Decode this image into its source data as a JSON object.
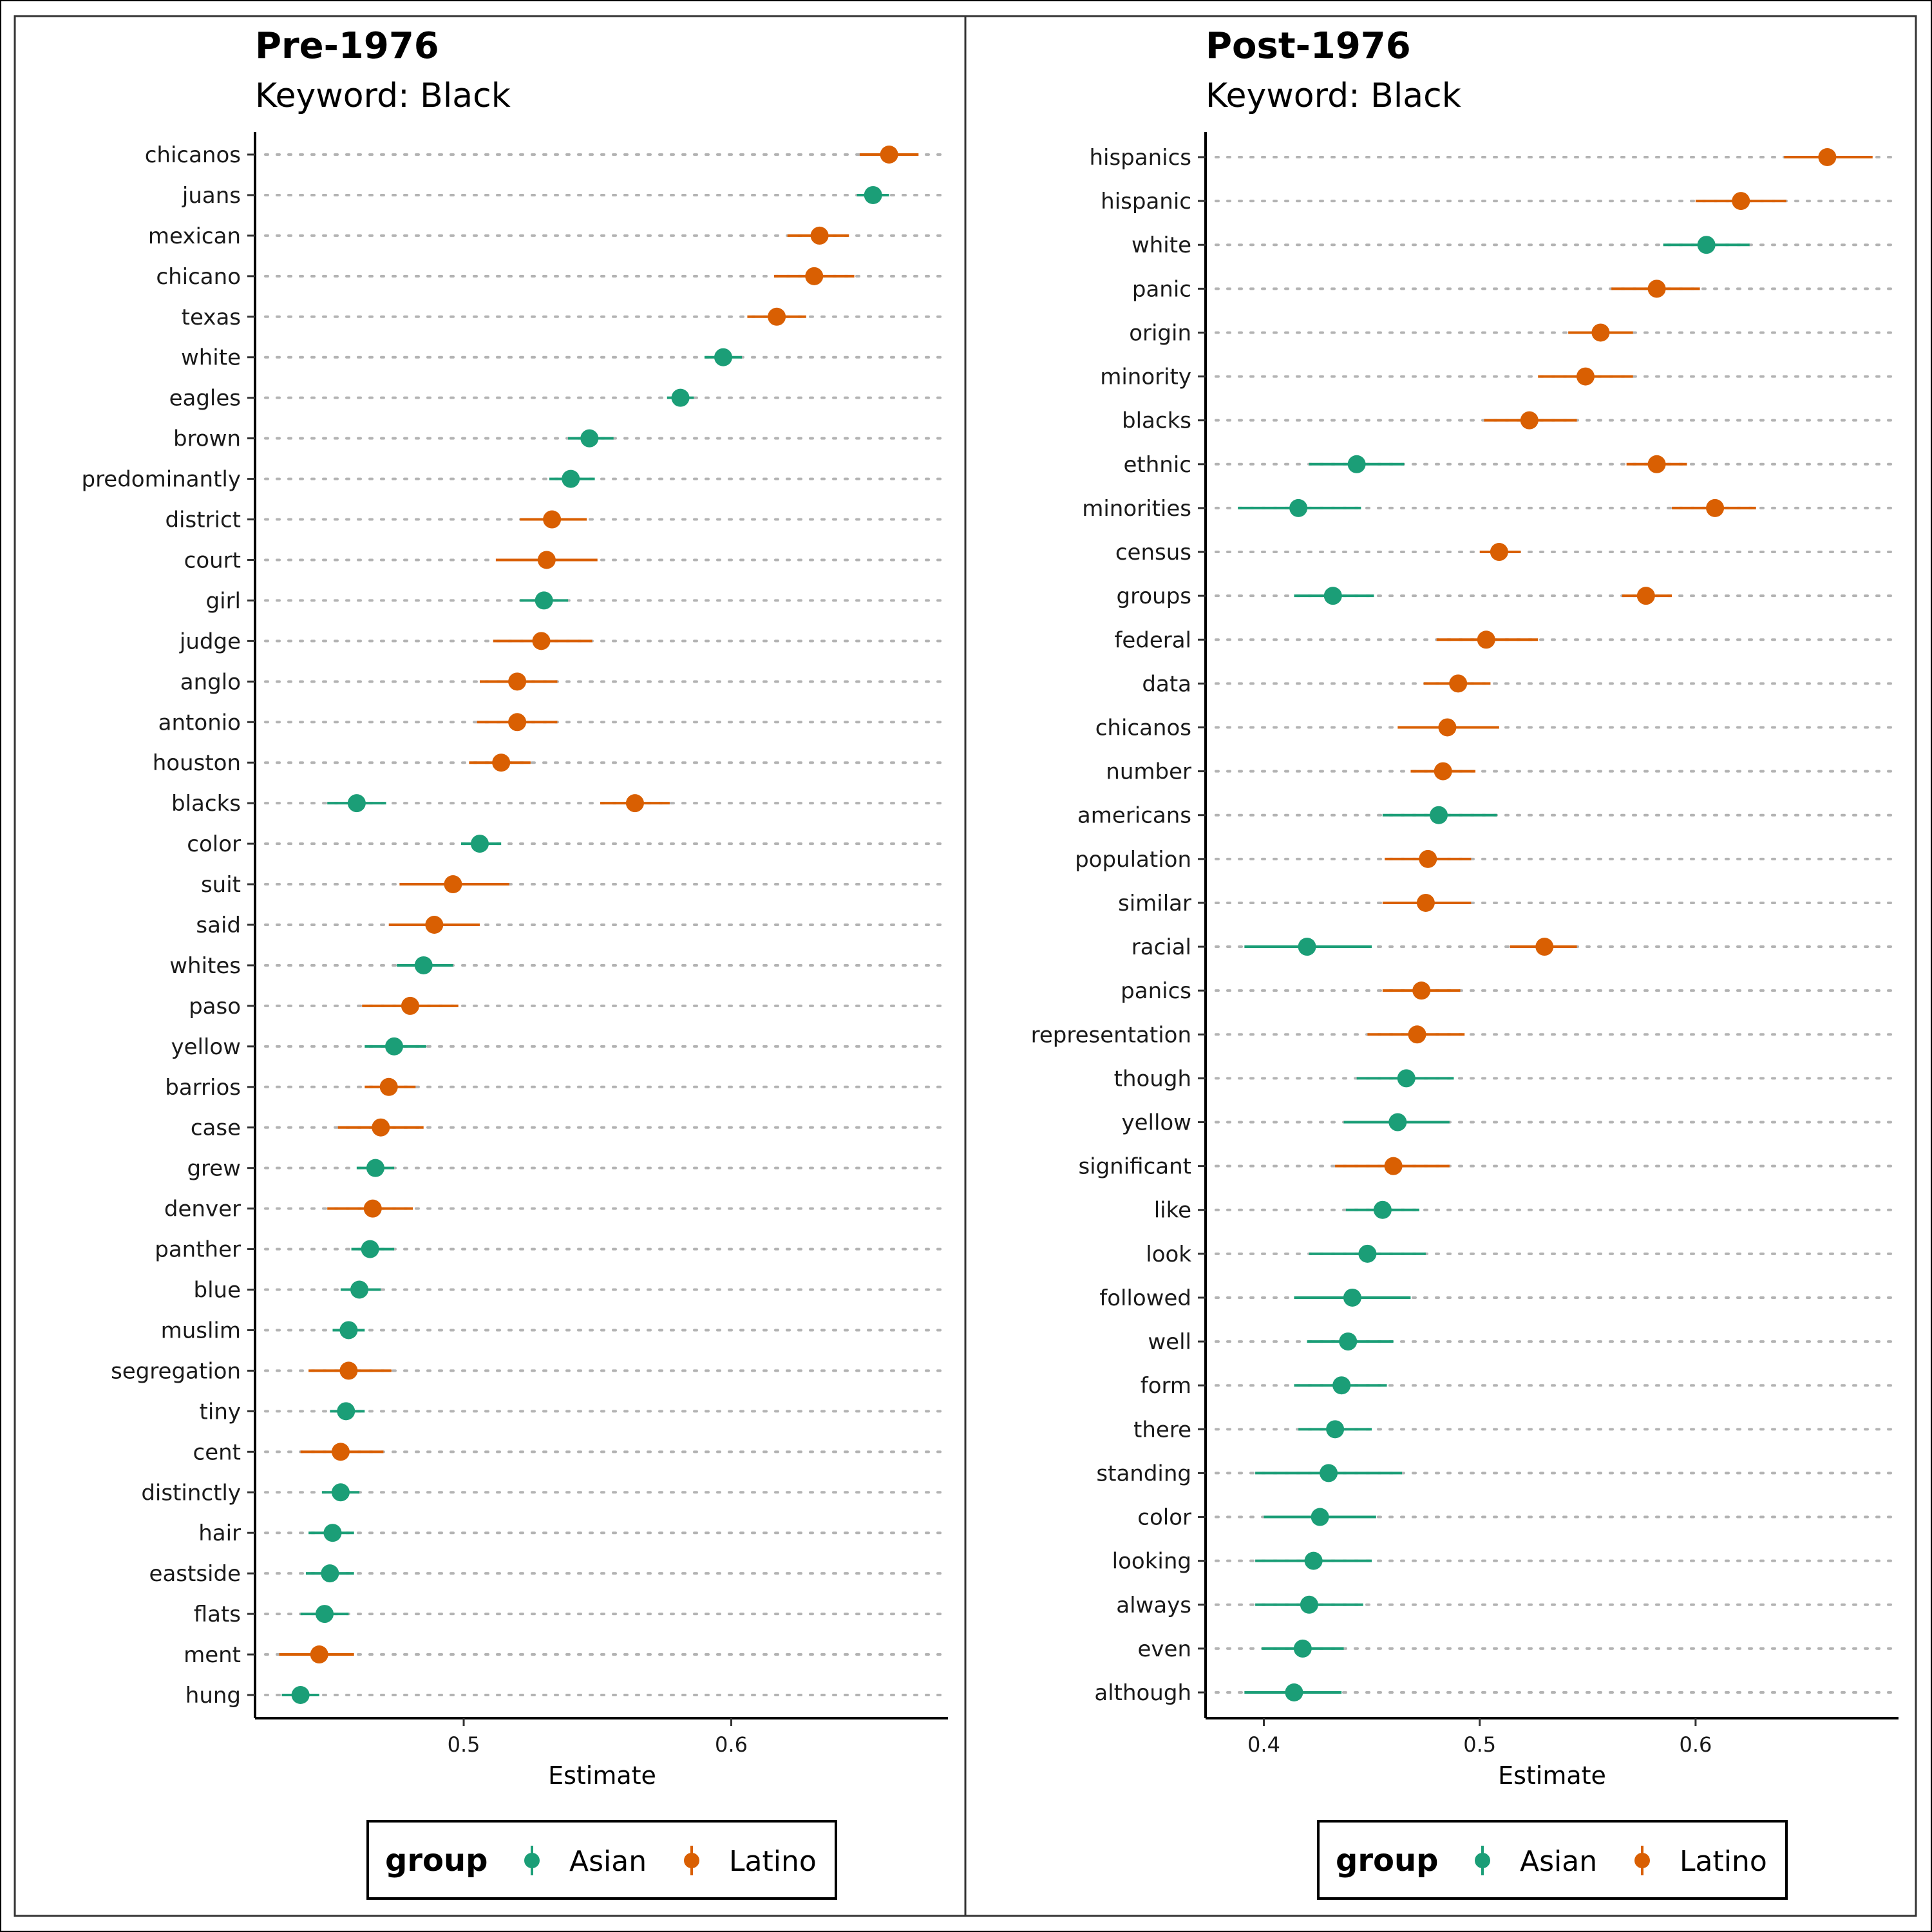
{
  "legend": {
    "title": "group",
    "entries": [
      {
        "label": "Asian",
        "color": "#1b9e77"
      },
      {
        "label": "Latino",
        "color": "#d95f02"
      }
    ]
  },
  "chart_data": [
    {
      "type": "dot-errorbar",
      "title": "Pre-1976",
      "subtitle": "Keyword: Black",
      "xlabel": "Estimate",
      "xlim": [
        0.422,
        0.681
      ],
      "xticks": [
        0.5,
        0.6
      ],
      "grid": "dotted horizontal guides",
      "legend_position": "bottom",
      "categories": [
        "chicanos",
        "juans",
        "mexican",
        "chicano",
        "texas",
        "white",
        "eagles",
        "brown",
        "predominantly",
        "district",
        "court",
        "girl",
        "judge",
        "anglo",
        "antonio",
        "houston",
        "blacks",
        "color",
        "suit",
        "said",
        "whites",
        "paso",
        "yellow",
        "barrios",
        "case",
        "grew",
        "denver",
        "panther",
        "blue",
        "muslim",
        "segregation",
        "tiny",
        "cent",
        "distinctly",
        "hair",
        "eastside",
        "flats",
        "ment",
        "hung"
      ],
      "points": [
        {
          "term": "chicanos",
          "group": "Latino",
          "estimate": 0.659,
          "low": 0.648,
          "high": 0.67
        },
        {
          "term": "juans",
          "group": "Asian",
          "estimate": 0.653,
          "low": 0.647,
          "high": 0.659
        },
        {
          "term": "mexican",
          "group": "Latino",
          "estimate": 0.633,
          "low": 0.621,
          "high": 0.644
        },
        {
          "term": "chicano",
          "group": "Latino",
          "estimate": 0.631,
          "low": 0.616,
          "high": 0.646
        },
        {
          "term": "texas",
          "group": "Latino",
          "estimate": 0.617,
          "low": 0.606,
          "high": 0.628
        },
        {
          "term": "white",
          "group": "Asian",
          "estimate": 0.597,
          "low": 0.59,
          "high": 0.604
        },
        {
          "term": "eagles",
          "group": "Asian",
          "estimate": 0.581,
          "low": 0.576,
          "high": 0.586
        },
        {
          "term": "brown",
          "group": "Asian",
          "estimate": 0.547,
          "low": 0.539,
          "high": 0.556
        },
        {
          "term": "predominantly",
          "group": "Asian",
          "estimate": 0.54,
          "low": 0.532,
          "high": 0.549
        },
        {
          "term": "district",
          "group": "Latino",
          "estimate": 0.533,
          "low": 0.521,
          "high": 0.546
        },
        {
          "term": "court",
          "group": "Latino",
          "estimate": 0.531,
          "low": 0.512,
          "high": 0.55
        },
        {
          "term": "girl",
          "group": "Asian",
          "estimate": 0.53,
          "low": 0.521,
          "high": 0.539
        },
        {
          "term": "judge",
          "group": "Latino",
          "estimate": 0.529,
          "low": 0.511,
          "high": 0.548
        },
        {
          "term": "anglo",
          "group": "Latino",
          "estimate": 0.52,
          "low": 0.506,
          "high": 0.535
        },
        {
          "term": "antonio",
          "group": "Latino",
          "estimate": 0.52,
          "low": 0.505,
          "high": 0.535
        },
        {
          "term": "houston",
          "group": "Latino",
          "estimate": 0.514,
          "low": 0.502,
          "high": 0.525
        },
        {
          "term": "blacks",
          "group": "Asian",
          "estimate": 0.46,
          "low": 0.449,
          "high": 0.471
        },
        {
          "term": "blacks",
          "group": "Latino",
          "estimate": 0.564,
          "low": 0.551,
          "high": 0.577
        },
        {
          "term": "color",
          "group": "Asian",
          "estimate": 0.506,
          "low": 0.499,
          "high": 0.514
        },
        {
          "term": "suit",
          "group": "Latino",
          "estimate": 0.496,
          "low": 0.476,
          "high": 0.517
        },
        {
          "term": "said",
          "group": "Latino",
          "estimate": 0.489,
          "low": 0.472,
          "high": 0.506
        },
        {
          "term": "whites",
          "group": "Asian",
          "estimate": 0.485,
          "low": 0.475,
          "high": 0.496
        },
        {
          "term": "paso",
          "group": "Latino",
          "estimate": 0.48,
          "low": 0.462,
          "high": 0.498
        },
        {
          "term": "yellow",
          "group": "Asian",
          "estimate": 0.474,
          "low": 0.463,
          "high": 0.486
        },
        {
          "term": "barrios",
          "group": "Latino",
          "estimate": 0.472,
          "low": 0.463,
          "high": 0.482
        },
        {
          "term": "case",
          "group": "Latino",
          "estimate": 0.469,
          "low": 0.453,
          "high": 0.485
        },
        {
          "term": "grew",
          "group": "Asian",
          "estimate": 0.467,
          "low": 0.46,
          "high": 0.474
        },
        {
          "term": "denver",
          "group": "Latino",
          "estimate": 0.466,
          "low": 0.449,
          "high": 0.481
        },
        {
          "term": "panther",
          "group": "Asian",
          "estimate": 0.465,
          "low": 0.458,
          "high": 0.474
        },
        {
          "term": "blue",
          "group": "Asian",
          "estimate": 0.461,
          "low": 0.454,
          "high": 0.469
        },
        {
          "term": "muslim",
          "group": "Asian",
          "estimate": 0.457,
          "low": 0.451,
          "high": 0.463
        },
        {
          "term": "segregation",
          "group": "Latino",
          "estimate": 0.457,
          "low": 0.442,
          "high": 0.473
        },
        {
          "term": "tiny",
          "group": "Asian",
          "estimate": 0.456,
          "low": 0.45,
          "high": 0.463
        },
        {
          "term": "cent",
          "group": "Latino",
          "estimate": 0.454,
          "low": 0.439,
          "high": 0.47
        },
        {
          "term": "distinctly",
          "group": "Asian",
          "estimate": 0.454,
          "low": 0.447,
          "high": 0.461
        },
        {
          "term": "hair",
          "group": "Asian",
          "estimate": 0.451,
          "low": 0.442,
          "high": 0.459
        },
        {
          "term": "eastside",
          "group": "Asian",
          "estimate": 0.45,
          "low": 0.441,
          "high": 0.459
        },
        {
          "term": "flats",
          "group": "Asian",
          "estimate": 0.448,
          "low": 0.439,
          "high": 0.457
        },
        {
          "term": "ment",
          "group": "Latino",
          "estimate": 0.446,
          "low": 0.431,
          "high": 0.459
        },
        {
          "term": "hung",
          "group": "Asian",
          "estimate": 0.439,
          "low": 0.432,
          "high": 0.446
        }
      ]
    },
    {
      "type": "dot-errorbar",
      "title": "Post-1976",
      "subtitle": "Keyword: Black",
      "xlabel": "Estimate",
      "xlim": [
        0.373,
        0.694
      ],
      "xticks": [
        0.4,
        0.5,
        0.6
      ],
      "grid": "dotted horizontal guides",
      "legend_position": "bottom",
      "categories": [
        "hispanics",
        "hispanic",
        "white",
        "panic",
        "origin",
        "minority",
        "blacks",
        "ethnic",
        "minorities",
        "census",
        "groups",
        "federal",
        "data",
        "chicanos",
        "number",
        "americans",
        "population",
        "similar",
        "racial",
        "panics",
        "representation",
        "though",
        "yellow",
        "significant",
        "like",
        "look",
        "followed",
        "well",
        "form",
        "there",
        "standing",
        "color",
        "looking",
        "always",
        "even",
        "although"
      ],
      "points": [
        {
          "term": "hispanics",
          "group": "Latino",
          "estimate": 0.661,
          "low": 0.641,
          "high": 0.682
        },
        {
          "term": "hispanic",
          "group": "Latino",
          "estimate": 0.621,
          "low": 0.6,
          "high": 0.642
        },
        {
          "term": "white",
          "group": "Asian",
          "estimate": 0.605,
          "low": 0.585,
          "high": 0.625
        },
        {
          "term": "panic",
          "group": "Latino",
          "estimate": 0.582,
          "low": 0.561,
          "high": 0.602
        },
        {
          "term": "origin",
          "group": "Latino",
          "estimate": 0.556,
          "low": 0.541,
          "high": 0.571
        },
        {
          "term": "minority",
          "group": "Latino",
          "estimate": 0.549,
          "low": 0.527,
          "high": 0.571
        },
        {
          "term": "blacks",
          "group": "Latino",
          "estimate": 0.523,
          "low": 0.502,
          "high": 0.545
        },
        {
          "term": "ethnic",
          "group": "Asian",
          "estimate": 0.443,
          "low": 0.421,
          "high": 0.465
        },
        {
          "term": "ethnic",
          "group": "Latino",
          "estimate": 0.582,
          "low": 0.568,
          "high": 0.596
        },
        {
          "term": "minorities",
          "group": "Asian",
          "estimate": 0.416,
          "low": 0.388,
          "high": 0.445
        },
        {
          "term": "minorities",
          "group": "Latino",
          "estimate": 0.609,
          "low": 0.589,
          "high": 0.628
        },
        {
          "term": "census",
          "group": "Latino",
          "estimate": 0.509,
          "low": 0.5,
          "high": 0.519
        },
        {
          "term": "groups",
          "group": "Asian",
          "estimate": 0.432,
          "low": 0.414,
          "high": 0.451
        },
        {
          "term": "groups",
          "group": "Latino",
          "estimate": 0.577,
          "low": 0.566,
          "high": 0.589
        },
        {
          "term": "federal",
          "group": "Latino",
          "estimate": 0.503,
          "low": 0.48,
          "high": 0.527
        },
        {
          "term": "data",
          "group": "Latino",
          "estimate": 0.49,
          "low": 0.474,
          "high": 0.505
        },
        {
          "term": "chicanos",
          "group": "Latino",
          "estimate": 0.485,
          "low": 0.462,
          "high": 0.509
        },
        {
          "term": "number",
          "group": "Latino",
          "estimate": 0.483,
          "low": 0.468,
          "high": 0.498
        },
        {
          "term": "americans",
          "group": "Asian",
          "estimate": 0.481,
          "low": 0.455,
          "high": 0.508
        },
        {
          "term": "population",
          "group": "Latino",
          "estimate": 0.476,
          "low": 0.456,
          "high": 0.496
        },
        {
          "term": "similar",
          "group": "Latino",
          "estimate": 0.475,
          "low": 0.455,
          "high": 0.496
        },
        {
          "term": "racial",
          "group": "Asian",
          "estimate": 0.42,
          "low": 0.391,
          "high": 0.45
        },
        {
          "term": "racial",
          "group": "Latino",
          "estimate": 0.53,
          "low": 0.514,
          "high": 0.545
        },
        {
          "term": "panics",
          "group": "Latino",
          "estimate": 0.473,
          "low": 0.455,
          "high": 0.491
        },
        {
          "term": "representation",
          "group": "Latino",
          "estimate": 0.471,
          "low": 0.448,
          "high": 0.493
        },
        {
          "term": "though",
          "group": "Asian",
          "estimate": 0.466,
          "low": 0.443,
          "high": 0.488
        },
        {
          "term": "yellow",
          "group": "Asian",
          "estimate": 0.462,
          "low": 0.437,
          "high": 0.486
        },
        {
          "term": "significant",
          "group": "Latino",
          "estimate": 0.46,
          "low": 0.433,
          "high": 0.486
        },
        {
          "term": "like",
          "group": "Asian",
          "estimate": 0.455,
          "low": 0.438,
          "high": 0.472
        },
        {
          "term": "look",
          "group": "Asian",
          "estimate": 0.448,
          "low": 0.421,
          "high": 0.475
        },
        {
          "term": "followed",
          "group": "Asian",
          "estimate": 0.441,
          "low": 0.414,
          "high": 0.468
        },
        {
          "term": "well",
          "group": "Asian",
          "estimate": 0.439,
          "low": 0.42,
          "high": 0.46
        },
        {
          "term": "form",
          "group": "Asian",
          "estimate": 0.436,
          "low": 0.414,
          "high": 0.457
        },
        {
          "term": "there",
          "group": "Asian",
          "estimate": 0.433,
          "low": 0.416,
          "high": 0.45
        },
        {
          "term": "standing",
          "group": "Asian",
          "estimate": 0.43,
          "low": 0.396,
          "high": 0.464
        },
        {
          "term": "color",
          "group": "Asian",
          "estimate": 0.426,
          "low": 0.4,
          "high": 0.452
        },
        {
          "term": "looking",
          "group": "Asian",
          "estimate": 0.423,
          "low": 0.396,
          "high": 0.45
        },
        {
          "term": "always",
          "group": "Asian",
          "estimate": 0.421,
          "low": 0.396,
          "high": 0.446
        },
        {
          "term": "even",
          "group": "Asian",
          "estimate": 0.418,
          "low": 0.399,
          "high": 0.437
        },
        {
          "term": "although",
          "group": "Asian",
          "estimate": 0.414,
          "low": 0.391,
          "high": 0.436
        }
      ]
    }
  ]
}
